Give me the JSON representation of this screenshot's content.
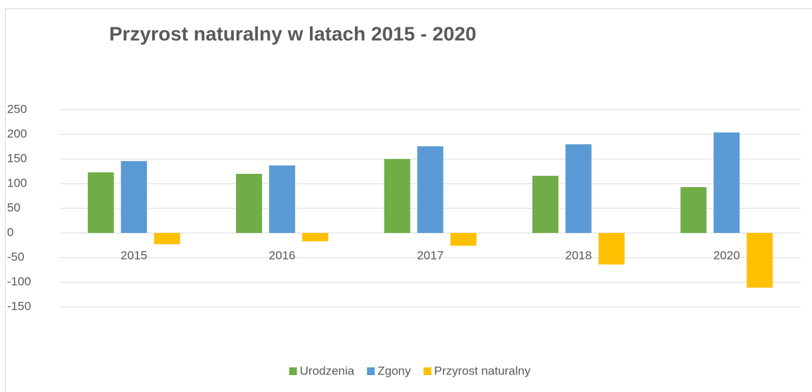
{
  "chart_data": {
    "type": "bar",
    "title": "Przyrost naturalny w latach 2015 - 2020",
    "categories": [
      "2015",
      "2016",
      "2017",
      "2018",
      "2020"
    ],
    "series": [
      {
        "name": "Urodzenia",
        "color": "#70ad47",
        "values": [
          123,
          120,
          150,
          116,
          93
        ]
      },
      {
        "name": "Zgony",
        "color": "#5b9bd5",
        "values": [
          146,
          137,
          176,
          180,
          204
        ]
      },
      {
        "name": "Przyrost naturalny",
        "color": "#ffc000",
        "values": [
          -23,
          -17,
          -26,
          -64,
          -111
        ]
      }
    ],
    "ylim": [
      -150,
      250
    ],
    "yticks": [
      -150,
      -100,
      -50,
      0,
      50,
      100,
      150,
      200,
      250
    ],
    "grid": true,
    "legend": "bottom"
  }
}
